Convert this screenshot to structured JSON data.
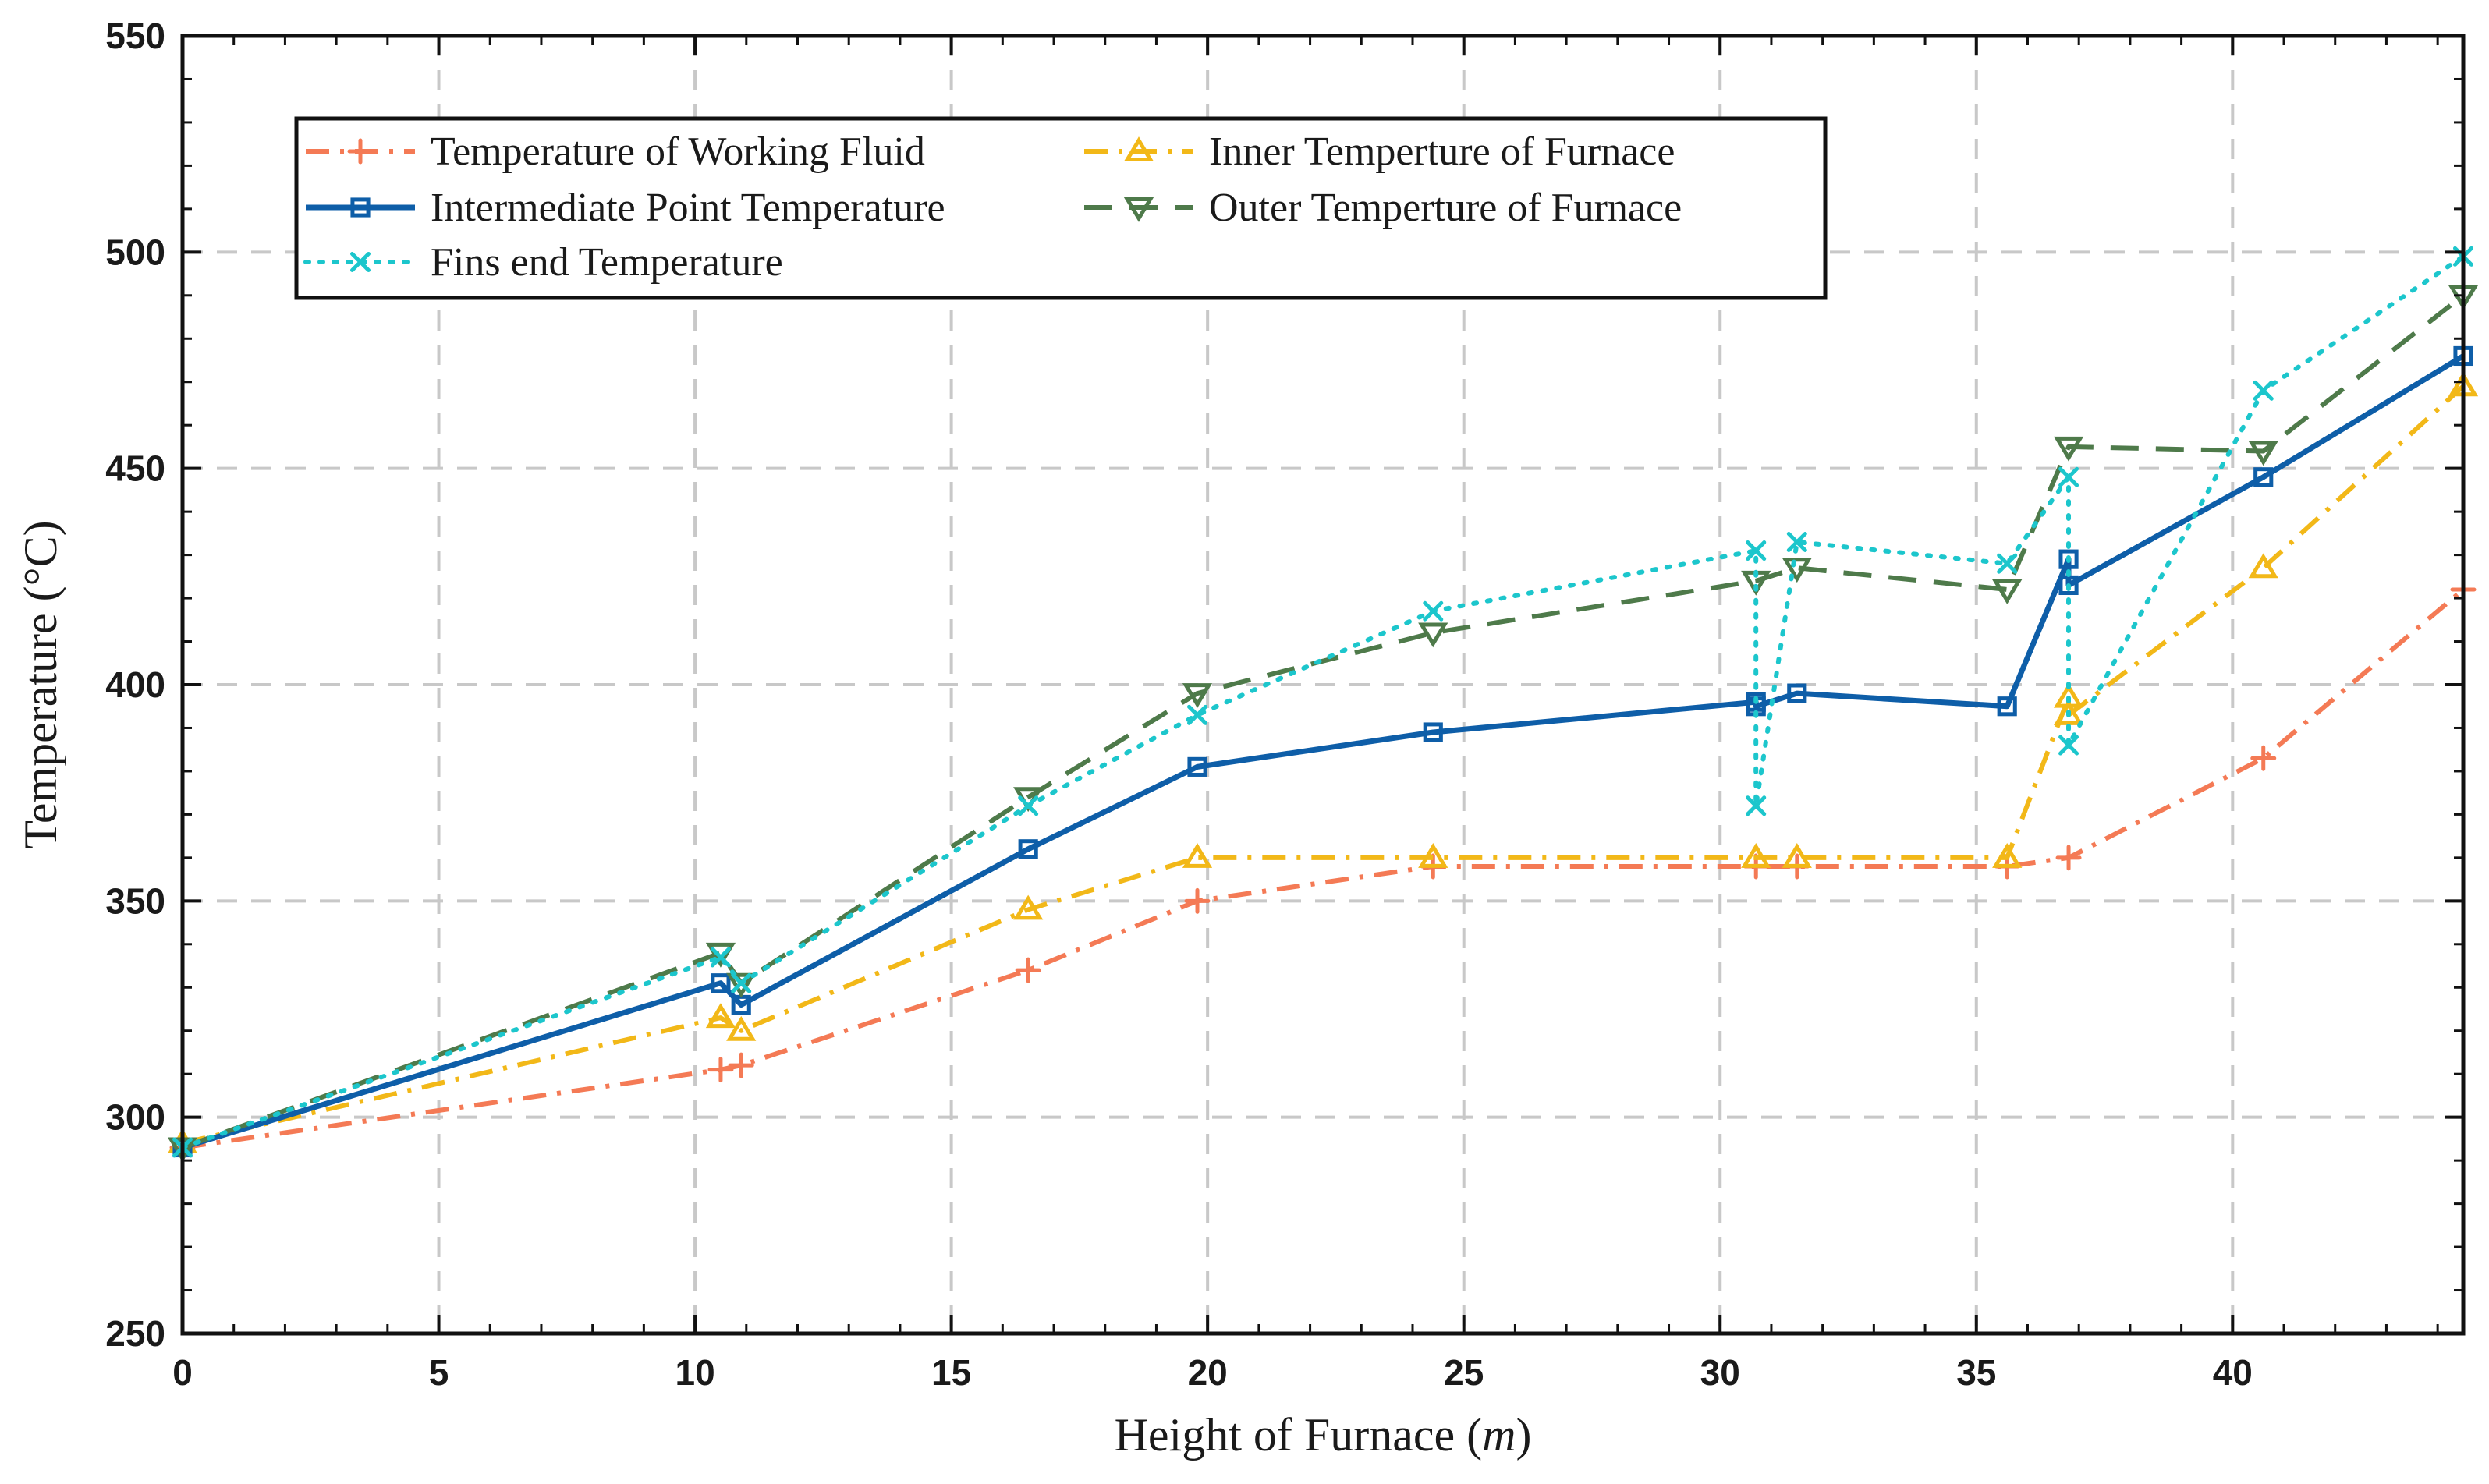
{
  "chart_data": {
    "type": "line",
    "title": "",
    "xlabel": "Height of Furnace",
    "xlabel_unit": "m",
    "ylabel": "Temperature (°C)",
    "xlim": [
      0,
      44.5
    ],
    "ylim": [
      250,
      550
    ],
    "xticks": [
      0,
      5,
      10,
      15,
      20,
      25,
      30,
      35,
      40
    ],
    "yticks": [
      250,
      300,
      350,
      400,
      450,
      500,
      550
    ],
    "grid": true,
    "legend_position": "top-left",
    "series": [
      {
        "name": "Temperature of Working Fluid",
        "color": "#F47A55",
        "line_style": "dash-dot",
        "marker": "plus",
        "x": [
          0,
          10.5,
          10.9,
          16.5,
          19.8,
          24.4,
          30.7,
          31.5,
          35.6,
          36.8,
          40.6,
          44.5
        ],
        "y": [
          293,
          311,
          312,
          334,
          350,
          358,
          358,
          358,
          358,
          360,
          383,
          422
        ]
      },
      {
        "name": "Inner Temperture of Furnace",
        "color": "#F2B818",
        "line_style": "dash-dot",
        "marker": "triangle-up",
        "x": [
          0,
          10.5,
          10.9,
          16.5,
          19.8,
          24.4,
          30.7,
          31.5,
          35.6,
          36.8,
          36.8,
          40.6,
          44.5
        ],
        "y": [
          294,
          323,
          320,
          348,
          360,
          360,
          360,
          360,
          360,
          397,
          393,
          427,
          469
        ]
      },
      {
        "name": "Intermediate Point Temperature",
        "color": "#0E5EA8",
        "line_style": "solid",
        "marker": "square",
        "x": [
          0,
          10.5,
          10.9,
          16.5,
          19.8,
          24.4,
          30.7,
          30.7,
          31.5,
          35.6,
          36.8,
          36.8,
          40.6,
          44.5
        ],
        "y": [
          293,
          331,
          326,
          362,
          381,
          389,
          396,
          395,
          398,
          395,
          429,
          423,
          448,
          476
        ]
      },
      {
        "name": "Outer Temperture of Furnace",
        "color": "#4E7A4A",
        "line_style": "dashed",
        "marker": "triangle-down",
        "x": [
          0,
          10.5,
          10.9,
          16.5,
          19.8,
          24.4,
          30.7,
          31.5,
          35.6,
          36.8,
          40.6,
          44.5
        ],
        "y": [
          293,
          338,
          331,
          374,
          398,
          412,
          424,
          427,
          422,
          455,
          454,
          490
        ]
      },
      {
        "name": "Fins end Temperature",
        "color": "#1CC6CC",
        "line_style": "dotted",
        "marker": "x",
        "x": [
          0,
          10.5,
          10.9,
          16.5,
          19.8,
          24.4,
          30.7,
          30.7,
          31.5,
          35.6,
          36.8,
          36.8,
          40.6,
          44.5
        ],
        "y": [
          293,
          337,
          331,
          372,
          393,
          417,
          431,
          372,
          433,
          428,
          448,
          386,
          468,
          499
        ]
      }
    ],
    "legend_order": [
      0,
      1,
      2,
      3,
      4
    ]
  }
}
